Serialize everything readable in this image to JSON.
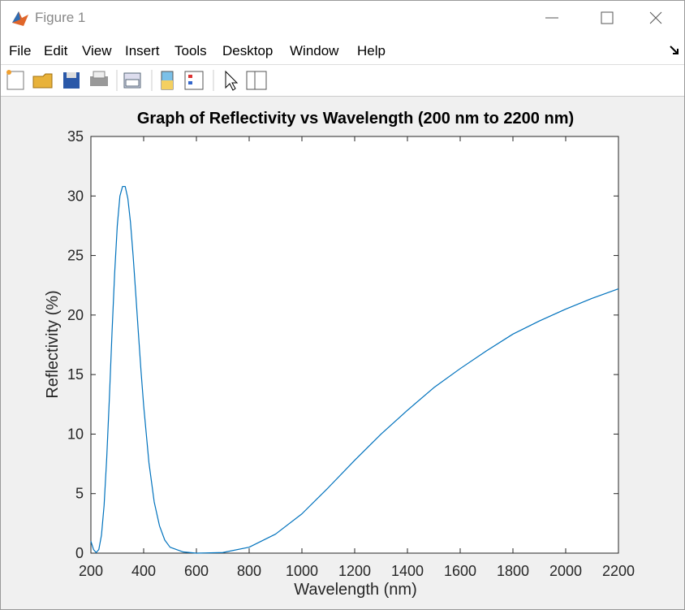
{
  "window": {
    "title": "Figure 1",
    "menu": [
      "File",
      "Edit",
      "View",
      "Insert",
      "Tools",
      "Desktop",
      "Window",
      "Help"
    ]
  },
  "chart_data": {
    "type": "line",
    "title": "Graph of Reflectivity vs Wavelength (200 nm to 2200 nm)",
    "xlabel": "Wavelength (nm)",
    "ylabel": "Reflectivity (%)",
    "x": [
      200,
      210,
      220,
      230,
      240,
      250,
      260,
      270,
      280,
      290,
      300,
      310,
      320,
      330,
      340,
      350,
      360,
      370,
      380,
      390,
      400,
      420,
      440,
      460,
      480,
      500,
      550,
      600,
      700,
      800,
      900,
      1000,
      1100,
      1200,
      1300,
      1400,
      1500,
      1600,
      1700,
      1800,
      1900,
      2000,
      2100,
      2200
    ],
    "values": [
      1.0,
      0.3,
      0.05,
      0.3,
      1.5,
      4,
      8,
      13,
      18.5,
      23.5,
      27.5,
      30,
      30.8,
      30.8,
      29.8,
      27.8,
      25,
      21.8,
      18.5,
      15.3,
      12.4,
      7.6,
      4.3,
      2.3,
      1.1,
      0.5,
      0.1,
      0,
      0.05,
      0.5,
      1.6,
      3.3,
      5.5,
      7.8,
      10.0,
      12.0,
      13.9,
      15.5,
      17.0,
      18.4,
      19.5,
      20.5,
      21.4,
      22.2
    ],
    "color": "#0072bd",
    "xlim": [
      200,
      2200
    ],
    "xticks": [
      200,
      400,
      600,
      800,
      1000,
      1200,
      1400,
      1600,
      1800,
      2000,
      2200
    ],
    "ylim": [
      0,
      35
    ],
    "yticks": [
      0,
      5,
      10,
      15,
      20,
      25,
      30,
      35
    ]
  }
}
